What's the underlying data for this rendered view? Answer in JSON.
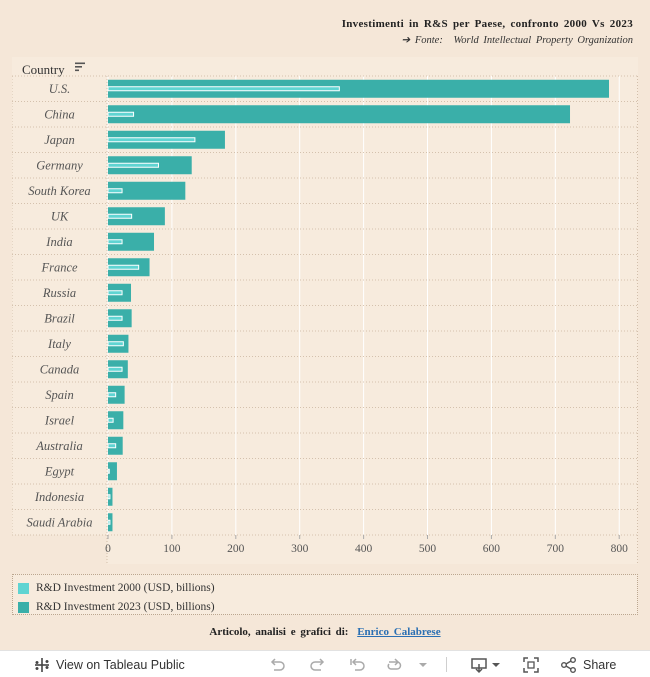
{
  "header": {
    "title": "Investimenti in R&S per Paese, confronto 2000 Vs 2023",
    "source_arrow": "➔",
    "source_label": "Fonte:",
    "source_value": "World Intellectual Property Organization"
  },
  "chart_data": {
    "type": "bar",
    "orientation": "horizontal",
    "row_header": "Country",
    "categories": [
      "U.S.",
      "China",
      "Japan",
      "Germany",
      "South Korea",
      "UK",
      "India",
      "France",
      "Russia",
      "Brazil",
      "Italy",
      "Canada",
      "Spain",
      "Israel",
      "Australia",
      "Egypt",
      "Indonesia",
      "Saudi Arabia"
    ],
    "series": [
      {
        "name": "R&D Investment 2023 (USD, billions)",
        "color": "#3aafa9",
        "values": [
          784,
          723,
          183,
          131,
          121,
          89,
          72,
          65,
          36,
          37,
          32,
          31,
          26,
          24,
          23,
          14,
          7,
          7
        ]
      },
      {
        "name": "R&D Investment 2000 (USD, billions)",
        "color": "#5fd4d2",
        "values": [
          362,
          40,
          136,
          79,
          22,
          37,
          22,
          48,
          22,
          22,
          24,
          22,
          12,
          8,
          12,
          2,
          3,
          3
        ]
      }
    ],
    "xlim": [
      0,
      820
    ],
    "xticks": [
      0,
      100,
      200,
      300,
      400,
      500,
      600,
      700,
      800
    ],
    "grid": true,
    "legend_position": "bottom"
  },
  "legend": {
    "items": [
      {
        "label": "R&D Investment 2000 (USD, billions)",
        "color": "#5fd4d2"
      },
      {
        "label": "R&D Investment 2023 (USD, billions)",
        "color": "#3aafa9"
      }
    ]
  },
  "footer": {
    "text": "Articolo, analisi e grafici di:",
    "author": "Enrico Calabrese"
  },
  "toolbar": {
    "view_label": "View on Tableau Public",
    "share_label": "Share"
  }
}
